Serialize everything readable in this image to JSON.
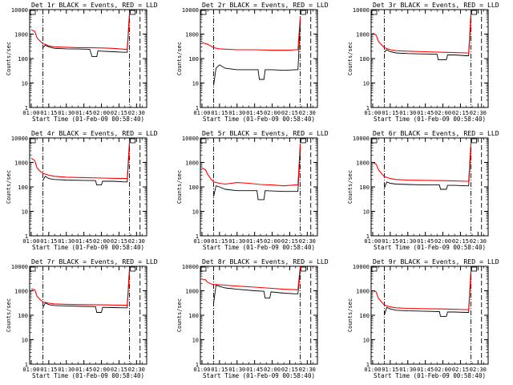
{
  "figure": {
    "series_colors": {
      "events": "#000000",
      "lld": "#ff0000"
    }
  },
  "chart_data": [
    {
      "type": "line",
      "title": "Det 1r BLACK = Events, RED = LLD",
      "xlabel": "Start Time (01-Feb-09 00:58:40)",
      "ylabel": "Counts/sec",
      "x_ticks": [
        "01:00",
        "01:15",
        "01:30",
        "01:45",
        "02:00",
        "02:15",
        "02:30"
      ],
      "y_ticks": [
        "1",
        "10",
        "100",
        "1000",
        "10000"
      ],
      "y_scale": "log",
      "ylim": [
        1,
        10000
      ],
      "xlim": [
        "00:58:40",
        "02:38:40"
      ],
      "markers": {
        "dash_dot": [
          "01:10",
          "02:24"
        ],
        "dashed": [
          "02:33"
        ]
      },
      "series": [
        {
          "color": "#000000",
          "x": [
            "01:10",
            "01:12",
            "01:15",
            "01:20",
            "01:30",
            "01:40",
            "01:50",
            "01:52",
            "01:53",
            "01:56",
            "01:57",
            "02:00",
            "02:10",
            "02:20",
            "02:22",
            "02:24"
          ],
          "y": [
            280,
            350,
            300,
            260,
            250,
            245,
            240,
            120,
            120,
            120,
            210,
            200,
            190,
            180,
            180,
            6000
          ]
        },
        {
          "color": "#ff0000",
          "x": [
            "01:00",
            "01:03",
            "01:05",
            "01:08",
            "01:10",
            "01:12",
            "01:15",
            "01:20",
            "01:30",
            "01:40",
            "01:50",
            "02:00",
            "02:10",
            "02:20",
            "02:22",
            "02:24"
          ],
          "y": [
            1500,
            1300,
            700,
            500,
            400,
            380,
            330,
            300,
            290,
            280,
            280,
            270,
            260,
            240,
            240,
            8000
          ]
        }
      ]
    },
    {
      "type": "line",
      "title": "Det 2r BLACK = Events, RED = LLD",
      "xlabel": "Start Time (01-Feb-09 00:58:40)",
      "ylabel": "Counts/sec",
      "x_ticks": [
        "01:00",
        "01:15",
        "01:30",
        "01:45",
        "02:00",
        "02:15",
        "02:30"
      ],
      "y_ticks": [
        "1",
        "10",
        "100",
        "1000",
        "10000"
      ],
      "y_scale": "log",
      "ylim": [
        1,
        10000
      ],
      "xlim": [
        "00:58:40",
        "02:38:40"
      ],
      "markers": {
        "dash_dot": [
          "01:10",
          "02:24"
        ],
        "dashed": [
          "02:33"
        ]
      },
      "series": [
        {
          "color": "#000000",
          "x": [
            "01:10",
            "01:12",
            "01:15",
            "01:20",
            "01:30",
            "01:40",
            "01:48",
            "01:49",
            "01:53",
            "01:54",
            "02:00",
            "02:10",
            "02:20",
            "02:22",
            "02:24"
          ],
          "y": [
            8,
            40,
            55,
            40,
            35,
            35,
            35,
            14,
            14,
            35,
            35,
            33,
            35,
            35,
            3000
          ]
        },
        {
          "color": "#ff0000",
          "x": [
            "01:00",
            "01:05",
            "01:10",
            "01:15",
            "01:30",
            "01:45",
            "02:00",
            "02:15",
            "02:20",
            "02:22",
            "02:24"
          ],
          "y": [
            450,
            380,
            280,
            250,
            230,
            230,
            220,
            220,
            230,
            230,
            5000
          ]
        }
      ]
    },
    {
      "type": "line",
      "title": "Det 3r BLACK = Events, RED = LLD",
      "xlabel": "Start Time (01-Feb-09 00:58:40)",
      "ylabel": "Counts/sec",
      "x_ticks": [
        "01:00",
        "01:15",
        "01:30",
        "01:45",
        "02:00",
        "02:15",
        "02:30"
      ],
      "y_ticks": [
        "1",
        "10",
        "100",
        "1000",
        "10000"
      ],
      "y_scale": "log",
      "ylim": [
        1,
        10000
      ],
      "xlim": [
        "00:58:40",
        "02:38:40"
      ],
      "markers": {
        "dash_dot": [
          "01:10",
          "02:24"
        ],
        "dashed": [
          "02:33"
        ]
      },
      "series": [
        {
          "color": "#000000",
          "x": [
            "01:10",
            "01:12",
            "01:15",
            "01:20",
            "01:30",
            "01:40",
            "01:55",
            "01:56",
            "02:03",
            "02:04",
            "02:10",
            "02:20",
            "02:22",
            "02:24"
          ],
          "y": [
            180,
            230,
            190,
            170,
            160,
            155,
            150,
            90,
            90,
            140,
            140,
            130,
            130,
            5000
          ]
        },
        {
          "color": "#ff0000",
          "x": [
            "01:00",
            "01:03",
            "01:05",
            "01:08",
            "01:10",
            "01:15",
            "01:20",
            "01:30",
            "01:45",
            "02:00",
            "02:10",
            "02:20",
            "02:22",
            "02:24"
          ],
          "y": [
            1100,
            900,
            500,
            350,
            280,
            230,
            210,
            200,
            190,
            180,
            175,
            170,
            170,
            8000
          ]
        }
      ]
    },
    {
      "type": "line",
      "title": "Det 4r BLACK = Events, RED = LLD",
      "xlabel": "Start Time (01-Feb-09 00:58:40)",
      "ylabel": "Counts/sec",
      "x_ticks": [
        "01:00",
        "01:15",
        "01:30",
        "01:45",
        "02:00",
        "02:15",
        "02:30"
      ],
      "y_ticks": [
        "1",
        "10",
        "100",
        "1000",
        "10000"
      ],
      "y_scale": "log",
      "ylim": [
        1,
        10000
      ],
      "xlim": [
        "00:58:40",
        "02:38:40"
      ],
      "markers": {
        "dash_dot": [
          "01:10",
          "02:24"
        ],
        "dashed": [
          "02:33"
        ]
      },
      "series": [
        {
          "color": "#000000",
          "x": [
            "01:10",
            "01:12",
            "01:15",
            "01:20",
            "01:30",
            "01:45",
            "01:55",
            "01:56",
            "02:00",
            "02:01",
            "02:10",
            "02:20",
            "02:22",
            "02:24"
          ],
          "y": [
            180,
            270,
            220,
            200,
            190,
            185,
            180,
            120,
            120,
            170,
            170,
            160,
            160,
            5000
          ]
        },
        {
          "color": "#ff0000",
          "x": [
            "01:00",
            "01:03",
            "01:05",
            "01:08",
            "01:10",
            "01:15",
            "01:20",
            "01:30",
            "01:45",
            "02:00",
            "02:10",
            "02:20",
            "02:22",
            "02:24"
          ],
          "y": [
            1500,
            1200,
            600,
            420,
            360,
            300,
            270,
            250,
            240,
            230,
            225,
            220,
            220,
            8000
          ]
        }
      ]
    },
    {
      "type": "line",
      "title": "Det 5r BLACK = Events, RED = LLD",
      "xlabel": "Start Time (01-Feb-09 00:58:40)",
      "ylabel": "Counts/sec",
      "x_ticks": [
        "01:00",
        "01:15",
        "01:30",
        "01:45",
        "02:00",
        "02:15",
        "02:30"
      ],
      "y_ticks": [
        "1",
        "10",
        "100",
        "1000",
        "10000"
      ],
      "y_scale": "log",
      "ylim": [
        1,
        10000
      ],
      "xlim": [
        "00:58:40",
        "02:38:40"
      ],
      "markers": {
        "dash_dot": [
          "01:10",
          "02:24"
        ],
        "dashed": [
          "02:33"
        ]
      },
      "series": [
        {
          "color": "#000000",
          "x": [
            "01:10",
            "01:12",
            "01:15",
            "01:20",
            "01:30",
            "01:40",
            "01:47",
            "01:48",
            "01:53",
            "01:54",
            "02:00",
            "02:10",
            "02:20",
            "02:22",
            "02:24"
          ],
          "y": [
            40,
            110,
            100,
            80,
            70,
            70,
            70,
            30,
            30,
            70,
            68,
            65,
            65,
            65,
            3000
          ]
        },
        {
          "color": "#ff0000",
          "x": [
            "01:00",
            "01:03",
            "01:05",
            "01:08",
            "01:10",
            "01:15",
            "01:20",
            "01:30",
            "01:40",
            "01:50",
            "02:00",
            "02:10",
            "02:20",
            "02:22",
            "02:24"
          ],
          "y": [
            600,
            500,
            320,
            200,
            160,
            140,
            130,
            150,
            140,
            125,
            120,
            110,
            120,
            120,
            6000
          ]
        }
      ]
    },
    {
      "type": "line",
      "title": "Det 6r BLACK = Events, RED = LLD",
      "xlabel": "Start Time (01-Feb-09 00:58:40)",
      "ylabel": "Counts/sec",
      "x_ticks": [
        "01:00",
        "01:15",
        "01:30",
        "01:45",
        "02:00",
        "02:15",
        "02:30"
      ],
      "y_ticks": [
        "1",
        "10",
        "100",
        "1000",
        "10000"
      ],
      "y_scale": "log",
      "ylim": [
        1,
        10000
      ],
      "xlim": [
        "00:58:40",
        "02:38:40"
      ],
      "markers": {
        "dash_dot": [
          "01:10",
          "02:24"
        ],
        "dashed": [
          "02:33"
        ]
      },
      "series": [
        {
          "color": "#000000",
          "x": [
            "01:10",
            "01:12",
            "01:15",
            "01:20",
            "01:30",
            "01:45",
            "01:57",
            "01:58",
            "02:03",
            "02:04",
            "02:10",
            "02:20",
            "02:22",
            "02:24"
          ],
          "y": [
            90,
            160,
            140,
            130,
            125,
            120,
            120,
            80,
            80,
            115,
            115,
            110,
            110,
            4000
          ]
        },
        {
          "color": "#ff0000",
          "x": [
            "01:00",
            "01:03",
            "01:05",
            "01:08",
            "01:10",
            "01:15",
            "01:20",
            "01:30",
            "01:45",
            "02:00",
            "02:10",
            "02:20",
            "02:22",
            "02:24"
          ],
          "y": [
            1000,
            850,
            500,
            330,
            260,
            220,
            200,
            190,
            185,
            180,
            175,
            170,
            170,
            7000
          ]
        }
      ]
    },
    {
      "type": "line",
      "title": "Det 7r BLACK = Events, RED = LLD",
      "xlabel": "Start Time (01-Feb-09 00:58:40)",
      "ylabel": "Counts/sec",
      "x_ticks": [
        "01:00",
        "01:15",
        "01:30",
        "01:45",
        "02:00",
        "02:15",
        "02:30"
      ],
      "y_ticks": [
        "1",
        "10",
        "100",
        "1000",
        "10000"
      ],
      "y_scale": "log",
      "ylim": [
        1,
        10000
      ],
      "xlim": [
        "00:58:40",
        "02:38:40"
      ],
      "markers": {
        "dash_dot": [
          "01:10",
          "02:24"
        ],
        "dashed": [
          "02:33"
        ]
      },
      "series": [
        {
          "color": "#000000",
          "x": [
            "01:10",
            "01:12",
            "01:15",
            "01:20",
            "01:30",
            "01:45",
            "01:55",
            "01:56",
            "02:00",
            "02:01",
            "02:10",
            "02:20",
            "02:22",
            "02:24"
          ],
          "y": [
            200,
            320,
            270,
            250,
            240,
            230,
            225,
            130,
            130,
            210,
            205,
            200,
            200,
            6000
          ]
        },
        {
          "color": "#ff0000",
          "x": [
            "01:00",
            "01:03",
            "01:05",
            "01:08",
            "01:10",
            "01:15",
            "01:20",
            "01:30",
            "01:45",
            "02:00",
            "02:10",
            "02:20",
            "02:22",
            "02:24"
          ],
          "y": [
            1200,
            1100,
            600,
            420,
            350,
            310,
            290,
            280,
            270,
            265,
            260,
            255,
            255,
            9000
          ]
        }
      ]
    },
    {
      "type": "line",
      "title": "Det 8r BLACK = Events, RED = LLD",
      "xlabel": "Start Time (01-Feb-09 00:58:40)",
      "ylabel": "Counts/sec",
      "x_ticks": [
        "01:00",
        "01:15",
        "01:30",
        "01:45",
        "02:00",
        "02:15",
        "02:30"
      ],
      "y_ticks": [
        "1",
        "10",
        "100",
        "1000",
        "10000"
      ],
      "y_scale": "log",
      "ylim": [
        1,
        10000
      ],
      "xlim": [
        "00:58:40",
        "02:38:40"
      ],
      "markers": {
        "dash_dot": [
          "01:10",
          "02:24"
        ],
        "dashed": [
          "02:33"
        ]
      },
      "series": [
        {
          "color": "#000000",
          "x": [
            "01:10",
            "01:12",
            "01:15",
            "01:20",
            "01:30",
            "01:45",
            "01:53",
            "01:54",
            "01:58",
            "01:59",
            "02:10",
            "02:20",
            "02:22",
            "02:24"
          ],
          "y": [
            300,
            1700,
            1500,
            1300,
            1150,
            1000,
            950,
            500,
            500,
            900,
            800,
            750,
            750,
            7000
          ]
        },
        {
          "color": "#ff0000",
          "x": [
            "01:00",
            "01:03",
            "01:05",
            "01:08",
            "01:10",
            "01:15",
            "01:20",
            "01:30",
            "01:45",
            "02:00",
            "02:10",
            "02:20",
            "02:22",
            "02:24"
          ],
          "y": [
            3000,
            2800,
            2200,
            1900,
            1800,
            1750,
            1700,
            1550,
            1400,
            1250,
            1150,
            1100,
            1100,
            10000
          ]
        }
      ]
    },
    {
      "type": "line",
      "title": "Det 9r BLACK = Events, RED = LLD",
      "xlabel": "Start Time (01-Feb-09 00:58:40)",
      "ylabel": "Counts/sec",
      "x_ticks": [
        "01:00",
        "01:15",
        "01:30",
        "01:45",
        "02:00",
        "02:15",
        "02:30"
      ],
      "y_ticks": [
        "1",
        "10",
        "100",
        "1000",
        "10000"
      ],
      "y_scale": "log",
      "ylim": [
        1,
        10000
      ],
      "xlim": [
        "00:58:40",
        "02:38:40"
      ],
      "markers": {
        "dash_dot": [
          "01:10",
          "02:24"
        ],
        "dashed": [
          "02:33"
        ]
      },
      "series": [
        {
          "color": "#000000",
          "x": [
            "01:10",
            "01:12",
            "01:15",
            "01:20",
            "01:30",
            "01:45",
            "01:57",
            "01:58",
            "02:03",
            "02:04",
            "02:10",
            "02:20",
            "02:22",
            "02:24"
          ],
          "y": [
            100,
            210,
            180,
            160,
            150,
            145,
            140,
            90,
            90,
            135,
            135,
            130,
            130,
            5000
          ]
        },
        {
          "color": "#ff0000",
          "x": [
            "01:00",
            "01:03",
            "01:05",
            "01:08",
            "01:10",
            "01:15",
            "01:20",
            "01:30",
            "01:45",
            "02:00",
            "02:10",
            "02:20",
            "02:22",
            "02:24"
          ],
          "y": [
            1000,
            900,
            480,
            330,
            260,
            220,
            200,
            190,
            185,
            180,
            175,
            170,
            170,
            8000
          ]
        }
      ]
    }
  ]
}
